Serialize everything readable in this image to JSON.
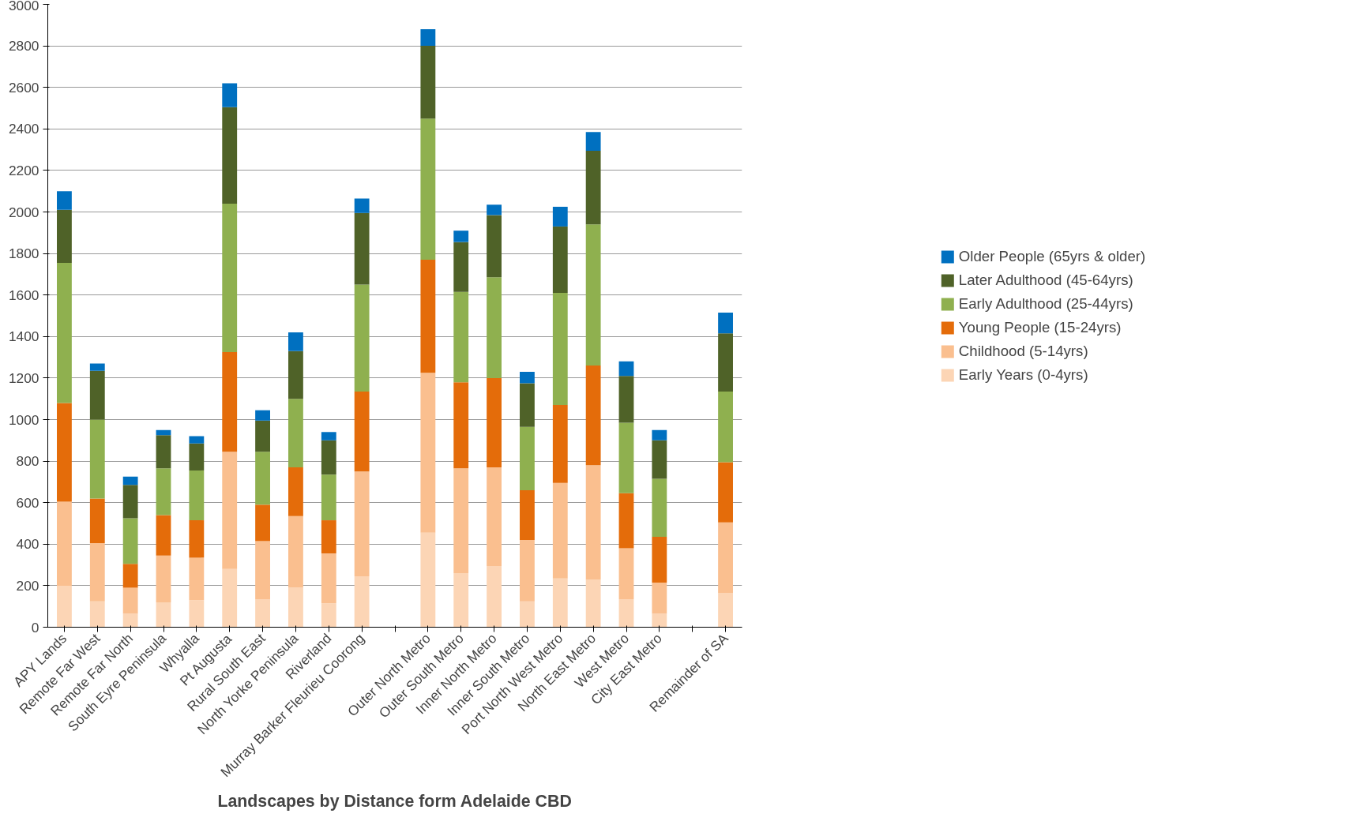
{
  "chart_data": {
    "type": "bar",
    "stacked": true,
    "xlabel": "Landscapes by Distance form Adelaide CBD",
    "categories": [
      "APY Lands",
      "Remote Far West",
      "Remote Far North",
      "South Eyre Peninsula",
      "Whyalla",
      "Pt Augusta",
      "Rural South East",
      "North Yorke Peninsula",
      "Riverland",
      "Murray Barker Fleurieu Coorong",
      null,
      "Outer North Metro",
      "Outer South Metro",
      "Inner North Metro",
      "Inner South Metro",
      "Port North West Metro",
      "North East Metro",
      "West Metro",
      "City East Metro",
      null,
      "Remainder of SA"
    ],
    "series": [
      {
        "name": "Early Years (0-4yrs)",
        "color": "#fcd5b5",
        "values": [
          200,
          125,
          65,
          120,
          130,
          280,
          135,
          190,
          115,
          245,
          null,
          455,
          260,
          295,
          125,
          235,
          230,
          135,
          65,
          null,
          165
        ]
      },
      {
        "name": "Childhood (5-14yrs)",
        "color": "#fabf8f",
        "values": [
          405,
          280,
          125,
          225,
          205,
          565,
          280,
          345,
          240,
          505,
          null,
          770,
          505,
          475,
          295,
          460,
          550,
          245,
          150,
          null,
          340
        ]
      },
      {
        "name": "Young People (15-24yrs)",
        "color": "#e46c0a",
        "values": [
          475,
          215,
          115,
          195,
          180,
          480,
          175,
          235,
          160,
          385,
          null,
          545,
          415,
          430,
          240,
          375,
          480,
          265,
          220,
          null,
          290
        ]
      },
      {
        "name": "Early Adulthood (25-44yrs)",
        "color": "#8fb04f",
        "values": [
          675,
          380,
          220,
          225,
          240,
          715,
          255,
          330,
          220,
          515,
          null,
          680,
          435,
          485,
          305,
          540,
          680,
          340,
          280,
          null,
          340
        ]
      },
      {
        "name": "Later Adulthood (45-64yrs)",
        "color": "#4f6228",
        "values": [
          255,
          235,
          160,
          160,
          130,
          465,
          150,
          230,
          165,
          345,
          null,
          350,
          240,
          300,
          210,
          320,
          355,
          225,
          185,
          null,
          280
        ]
      },
      {
        "name": "Older People (65yrs & older)",
        "color": "#0070c0",
        "values": [
          90,
          35,
          40,
          25,
          35,
          115,
          50,
          90,
          40,
          70,
          null,
          80,
          55,
          50,
          55,
          95,
          90,
          70,
          50,
          null,
          100
        ]
      }
    ],
    "ylim": [
      0,
      3000
    ],
    "yticks": [
      0,
      200,
      400,
      600,
      800,
      1000,
      1200,
      1400,
      1600,
      1800,
      2000,
      2200,
      2400,
      2600,
      2800,
      3000
    ],
    "grid": "y",
    "legend": "right"
  }
}
